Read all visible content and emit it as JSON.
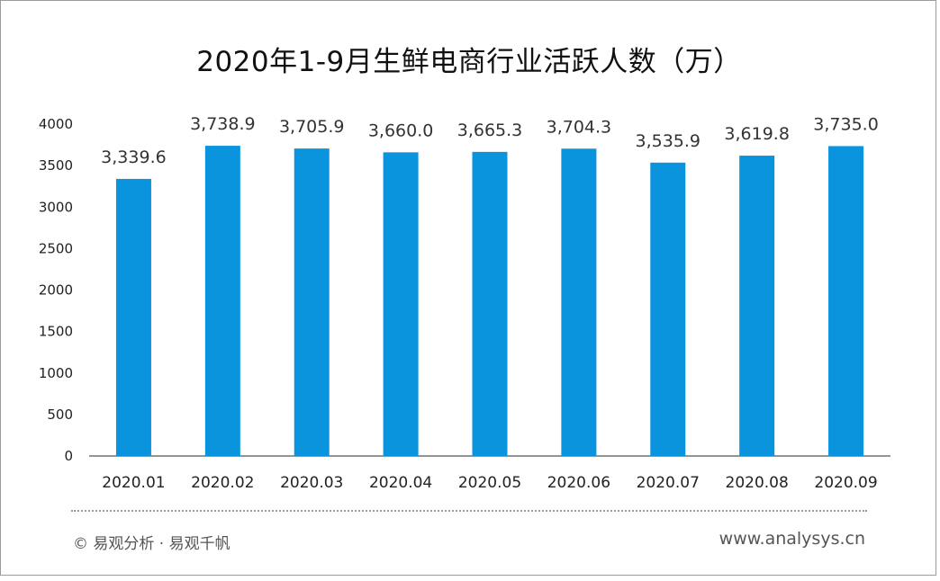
{
  "chart_data": {
    "type": "bar",
    "title": "2020年1-9月生鲜电商行业活跃人数（万）",
    "categories": [
      "2020.01",
      "2020.02",
      "2020.03",
      "2020.04",
      "2020.05",
      "2020.06",
      "2020.07",
      "2020.08",
      "2020.09"
    ],
    "values": [
      3339.6,
      3738.9,
      3705.9,
      3660.0,
      3665.3,
      3704.3,
      3535.9,
      3619.8,
      3735.0
    ],
    "value_labels": [
      "3,339.6",
      "3,738.9",
      "3,705.9",
      "3,660.0",
      "3,665.3",
      "3,704.3",
      "3,535.9",
      "3,619.8",
      "3,735.0"
    ],
    "y_ticks": [
      "0",
      "500",
      "1000",
      "1500",
      "2000",
      "2500",
      "3000",
      "3500",
      "4000"
    ],
    "ylim": [
      0,
      4000
    ],
    "xlabel": "",
    "ylabel": "",
    "grid": false,
    "bar_color": "#0a94de"
  },
  "footer": {
    "source": "© 易观分析 · 易观千帆",
    "website": "www.analysys.cn"
  }
}
